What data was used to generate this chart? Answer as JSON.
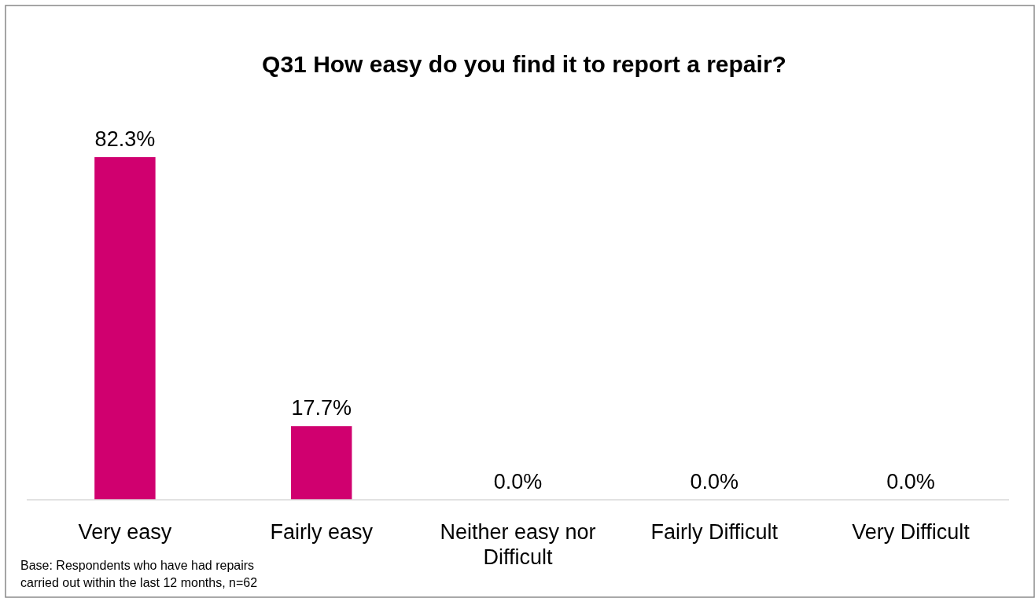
{
  "chart_data": {
    "type": "bar",
    "title": "Q31 How easy do you find it to report a repair?",
    "categories": [
      "Very easy",
      "Fairly easy",
      "Neither easy nor Difficult",
      "Fairly Difficult",
      "Very Difficult"
    ],
    "values": [
      82.3,
      17.7,
      0.0,
      0.0,
      0.0
    ],
    "value_labels": [
      "82.3%",
      "17.7%",
      "0.0%",
      "0.0%",
      "0.0%"
    ],
    "color": "#d0006f",
    "tick_labels": "x",
    "annotations": [
      "Base: Respondents who have had repairs carried out within the last 12 months, n=62"
    ]
  }
}
